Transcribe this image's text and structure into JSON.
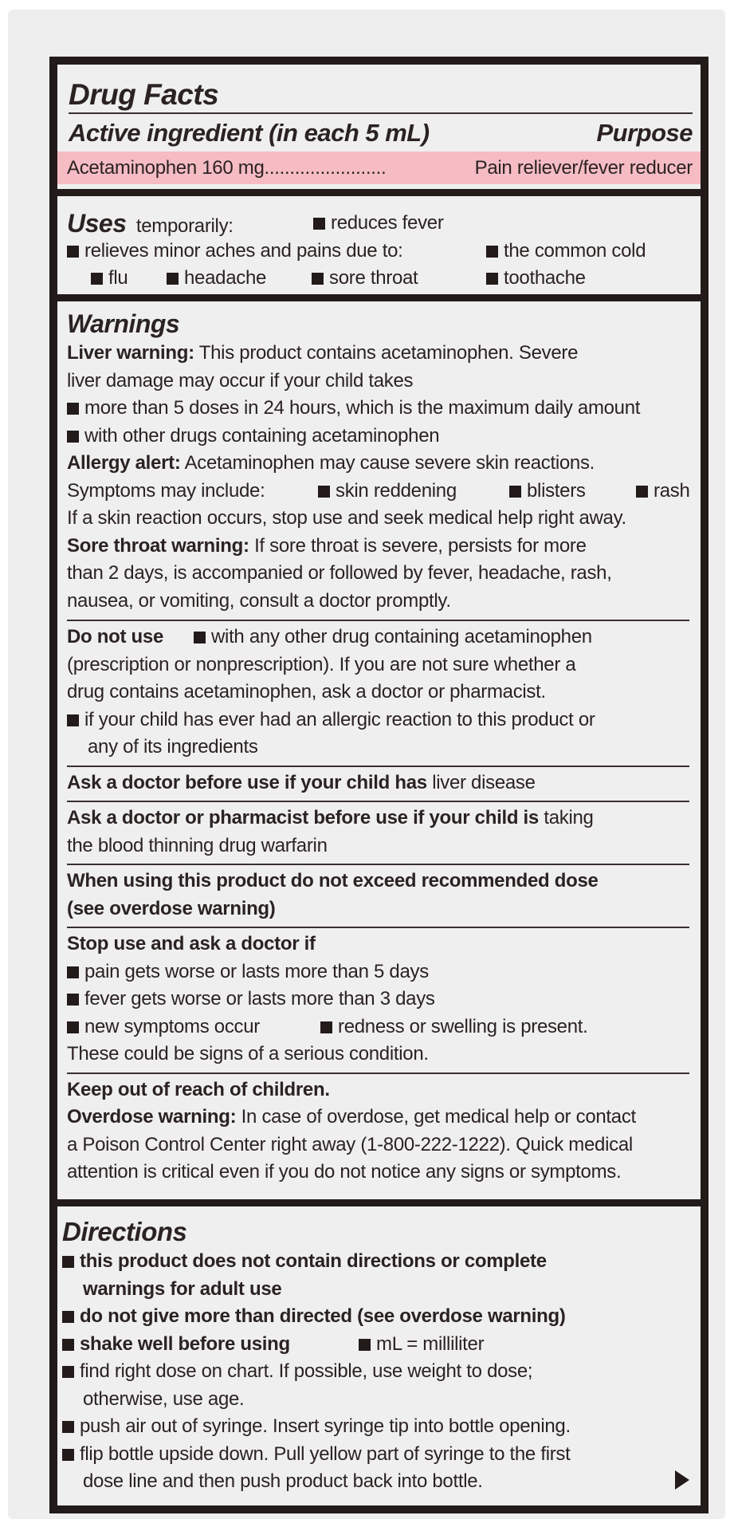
{
  "drug_facts": {
    "title": "Drug Facts",
    "active_heading": "Active ingredient (in each 5 mL)",
    "purpose_heading": "Purpose",
    "ingredient": "Acetaminophen 160 mg",
    "leader": "........................",
    "purpose": "Pain reliever/fever reducer",
    "band_color": "#f5bcc3"
  },
  "uses": {
    "heading": "Uses",
    "intro": "temporarily:",
    "items": [
      "reduces fever",
      "relieves minor aches and pains due to:",
      "the common cold",
      "flu",
      "headache",
      "sore throat",
      "toothache"
    ]
  },
  "warnings": {
    "heading": "Warnings",
    "liver_label": "Liver warning:",
    "liver_lines": [
      "This product contains acetaminophen. Severe",
      "liver damage may occur if your child takes"
    ],
    "liver_bullets": [
      "more than 5 doses in 24 hours, which is the maximum daily amount",
      "with other drugs containing acetaminophen"
    ],
    "allergy_label": "Allergy alert:",
    "allergy_text": "Acetaminophen may cause severe skin reactions.",
    "symptoms_intro": "Symptoms may include:",
    "symptoms": [
      "skin reddening",
      "blisters",
      "rash"
    ],
    "allergy_followup": "If a skin reaction occurs, stop use and seek medical help right away.",
    "sore_throat_label": "Sore throat warning:",
    "sore_throat_lines": [
      "If sore throat is severe, persists for more",
      "than 2 days, is accompanied or followed by fever, headache, rash,",
      "nausea, or vomiting, consult a doctor promptly."
    ],
    "do_not_use_label": "Do not use",
    "do_not_use_lines": [
      "with any other drug containing acetaminophen",
      "(prescription or nonprescription). If you are not sure whether a",
      "drug contains acetaminophen, ask a doctor or pharmacist."
    ],
    "do_not_use_bullet2": [
      "if your child has ever had an allergic reaction to this product or",
      "any of its ingredients"
    ],
    "ask_doctor_label": "Ask a doctor before use if your child has",
    "ask_doctor_text": "liver disease",
    "ask_pharmacist_label": "Ask a doctor or pharmacist before use if your child is",
    "ask_pharmacist_text": "taking",
    "ask_pharmacist_line2": "the blood thinning drug warfarin",
    "when_using_lines": [
      "When using this product do not exceed recommended dose",
      "(see overdose warning)"
    ],
    "stop_use_label": "Stop use and ask a doctor if",
    "stop_use_items": [
      "pain gets worse or lasts more than 5 days",
      "fever gets worse or lasts more than 3 days",
      "new symptoms occur",
      "redness or swelling is present."
    ],
    "stop_use_note": "These could be signs of a serious condition.",
    "keep_out": "Keep out of reach of children.",
    "overdose_label": "Overdose warning:",
    "overdose_lines": [
      "In case of overdose, get medical help or contact",
      "a Poison Control Center right away (1-800-222-1222). Quick medical",
      "attention is critical even if you do not notice any signs or symptoms."
    ]
  },
  "directions": {
    "heading": "Directions",
    "bold_items": [
      [
        "this product does not contain directions or complete",
        "warnings for adult use"
      ],
      [
        "do not give more than directed (see overdose warning)"
      ],
      [
        "shake well before using"
      ]
    ],
    "ml_note": "mL = milliliter",
    "items": [
      [
        "find right dose on chart. If possible, use weight to dose;",
        "otherwise, use age."
      ],
      [
        "push air out of syringe. Insert syringe tip into bottle opening."
      ],
      [
        "flip bottle upside down. Pull yellow part of syringe to the first",
        "dose line and then push product back into bottle."
      ]
    ],
    "continue_icon": "triangle-right-icon"
  }
}
